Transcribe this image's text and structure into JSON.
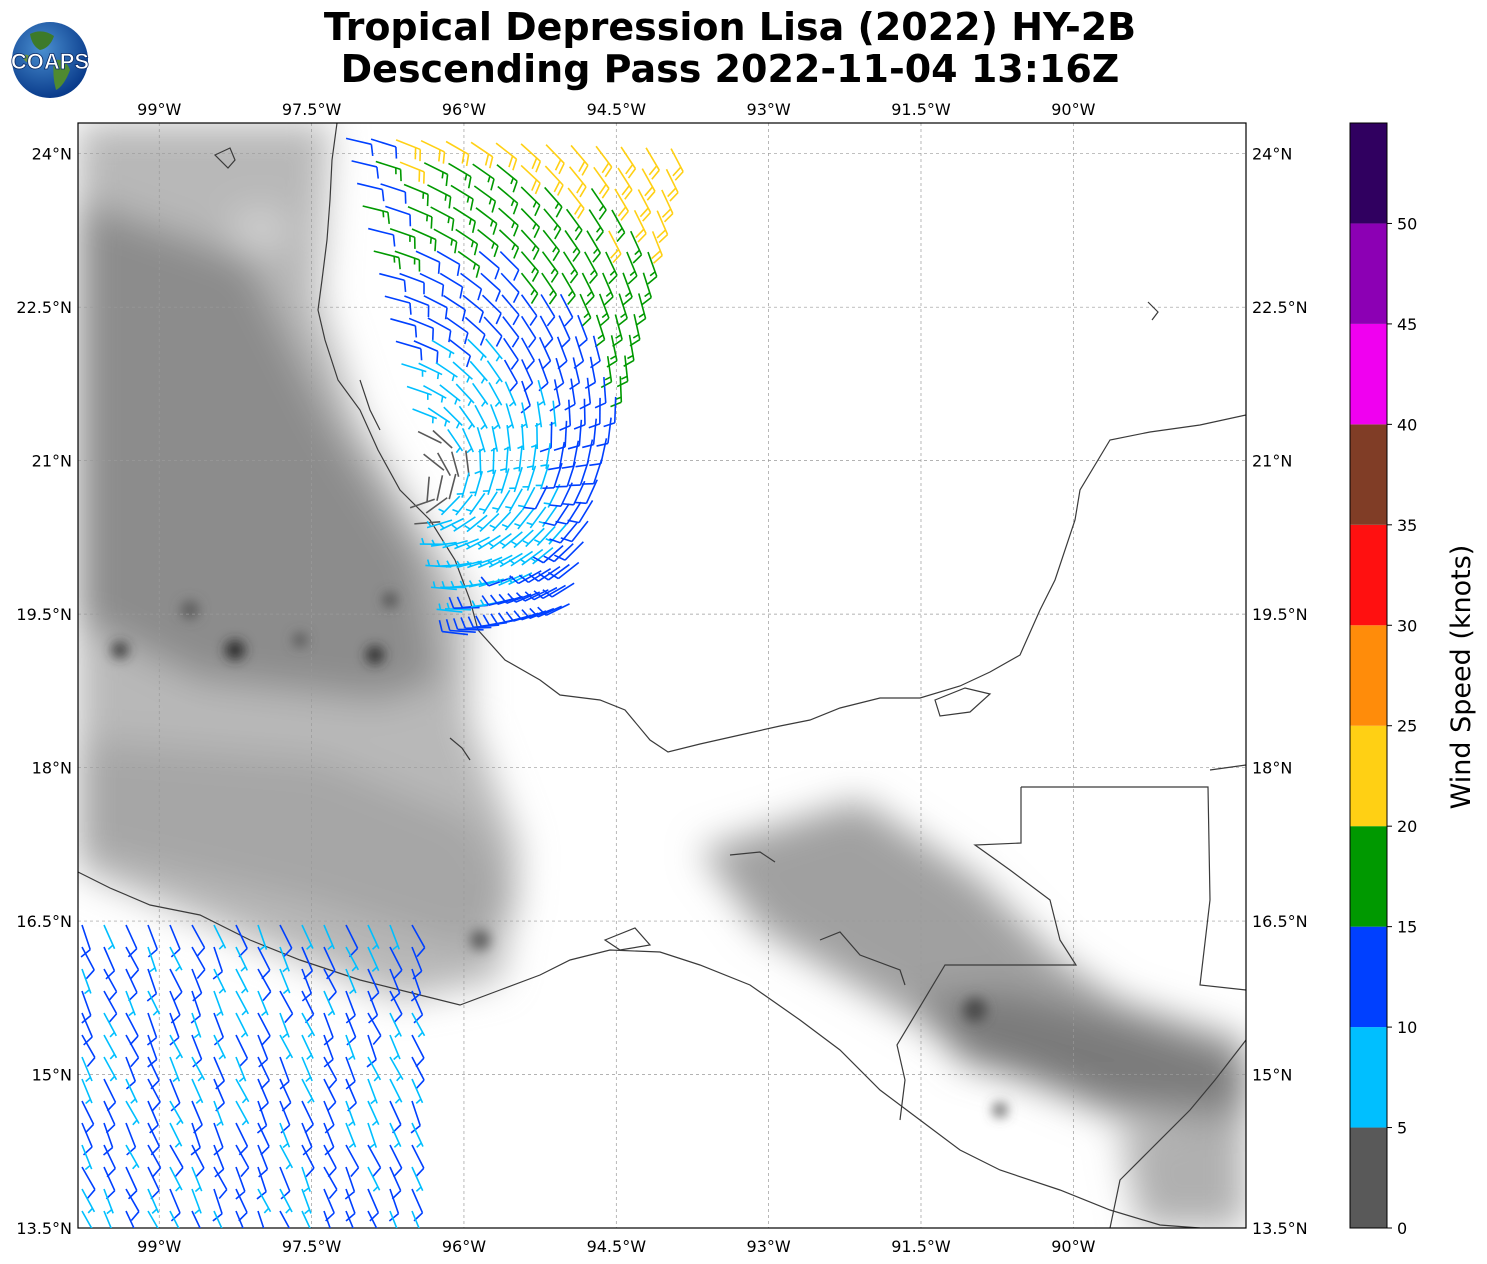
{
  "title": {
    "line1": "Tropical Depression Lisa (2022) HY-2B",
    "line2": "Descending Pass 2022-11-04 13:16Z"
  },
  "logo": {
    "text": "COAPS",
    "icon": "globe-icon"
  },
  "map": {
    "lon_range": [
      -99.8,
      -88.3
    ],
    "lat_range": [
      13.5,
      24.3
    ],
    "lon_ticks": [
      {
        "v": -99,
        "label": "99°W"
      },
      {
        "v": -97.5,
        "label": "97.5°W"
      },
      {
        "v": -96,
        "label": "96°W"
      },
      {
        "v": -94.5,
        "label": "94.5°W"
      },
      {
        "v": -93,
        "label": "93°W"
      },
      {
        "v": -91.5,
        "label": "91.5°W"
      },
      {
        "v": -90,
        "label": "90°W"
      }
    ],
    "lat_ticks": [
      {
        "v": 24,
        "label": "24°N"
      },
      {
        "v": 22.5,
        "label": "22.5°N"
      },
      {
        "v": 21,
        "label": "21°N"
      },
      {
        "v": 19.5,
        "label": "19.5°N"
      },
      {
        "v": 18,
        "label": "18°N"
      },
      {
        "v": 16.5,
        "label": "16.5°N"
      },
      {
        "v": 15,
        "label": "15°N"
      },
      {
        "v": 13.5,
        "label": "13.5°N"
      }
    ],
    "gridlines": true
  },
  "colorbar": {
    "label": "Wind Speed (knots)",
    "bins": [
      {
        "from": 0,
        "to": 5,
        "color": "#595959"
      },
      {
        "from": 5,
        "to": 10,
        "color": "#00bfff"
      },
      {
        "from": 10,
        "to": 15,
        "color": "#0040ff"
      },
      {
        "from": 15,
        "to": 20,
        "color": "#009900"
      },
      {
        "from": 20,
        "to": 25,
        "color": "#ffd014"
      },
      {
        "from": 25,
        "to": 30,
        "color": "#ff8c0a"
      },
      {
        "from": 30,
        "to": 35,
        "color": "#ff1010"
      },
      {
        "from": 35,
        "to": 40,
        "color": "#803d26"
      },
      {
        "from": 40,
        "to": 45,
        "color": "#f000f0"
      },
      {
        "from": 45,
        "to": 50,
        "color": "#8c00b4"
      },
      {
        "from": 50,
        "to": 55,
        "color": "#300060"
      }
    ],
    "tick_labels": [
      "0",
      "5",
      "10",
      "15",
      "20",
      "25",
      "30",
      "35",
      "40",
      "45",
      "50"
    ]
  },
  "swaths": [
    {
      "name": "gulf",
      "corners": [
        [
          -97.2,
          24.15
        ],
        [
          -94.0,
          24.05
        ],
        [
          -95.0,
          19.6
        ],
        [
          -96.0,
          19.3
        ]
      ]
    },
    {
      "name": "pacific",
      "corners": [
        [
          -99.8,
          16.5
        ],
        [
          -96.5,
          16.5
        ],
        [
          -96.5,
          13.5
        ],
        [
          -99.8,
          13.5
        ]
      ]
    }
  ]
}
